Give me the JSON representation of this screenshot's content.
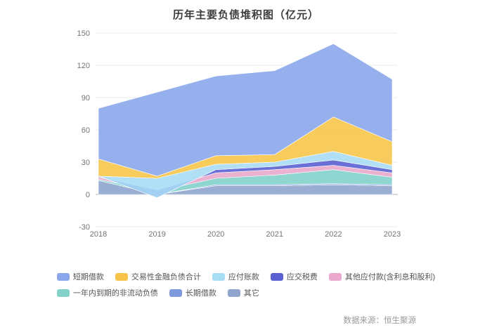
{
  "footer": {
    "source": "数据来源：恒生聚源"
  },
  "chart_data": {
    "type": "area",
    "stacked": true,
    "title": "历年主要负债堆积图（亿元）",
    "x": [
      "2018",
      "2019",
      "2020",
      "2021",
      "2022",
      "2023"
    ],
    "ylim": [
      -30,
      150
    ],
    "yticks": [
      150,
      120,
      90,
      60,
      30,
      0,
      -30
    ],
    "grid": true,
    "legend_position": "bottom",
    "series": [
      {
        "name": "短期借款",
        "color": "#8BA7EC",
        "values": [
          47,
          78,
          74,
          78,
          68,
          58
        ]
      },
      {
        "name": "交易性金融负债合计",
        "color": "#F6C54A",
        "values": [
          16,
          2,
          8,
          7,
          32,
          22
        ]
      },
      {
        "name": "应付账款",
        "color": "#A9DCF5",
        "values": [
          0,
          18,
          5,
          4,
          8,
          4
        ]
      },
      {
        "name": "应交税费",
        "color": "#5A60D2",
        "values": [
          1,
          -7,
          3,
          3,
          5,
          3
        ]
      },
      {
        "name": "其他应付款(含利息和股利)",
        "color": "#E9A8CC",
        "values": [
          2,
          1,
          5,
          5,
          4,
          4
        ]
      },
      {
        "name": "一年内到期的非流动负债",
        "color": "#82D2CA",
        "values": [
          1,
          3,
          6,
          9,
          13,
          7
        ]
      },
      {
        "name": "长期借款",
        "color": "#7E99DE",
        "values": [
          0,
          0,
          1,
          1,
          1,
          1
        ]
      },
      {
        "name": "其它",
        "color": "#8FA5CE",
        "values": [
          13,
          0,
          8,
          8,
          9,
          8
        ]
      }
    ],
    "stack_order_bottom_to_top": [
      7,
      6,
      5,
      4,
      3,
      2,
      1,
      0
    ],
    "legend_rows": [
      [
        0,
        1,
        2,
        3,
        4
      ],
      [
        5,
        6,
        7
      ]
    ],
    "axis_label_color": "#737373"
  }
}
